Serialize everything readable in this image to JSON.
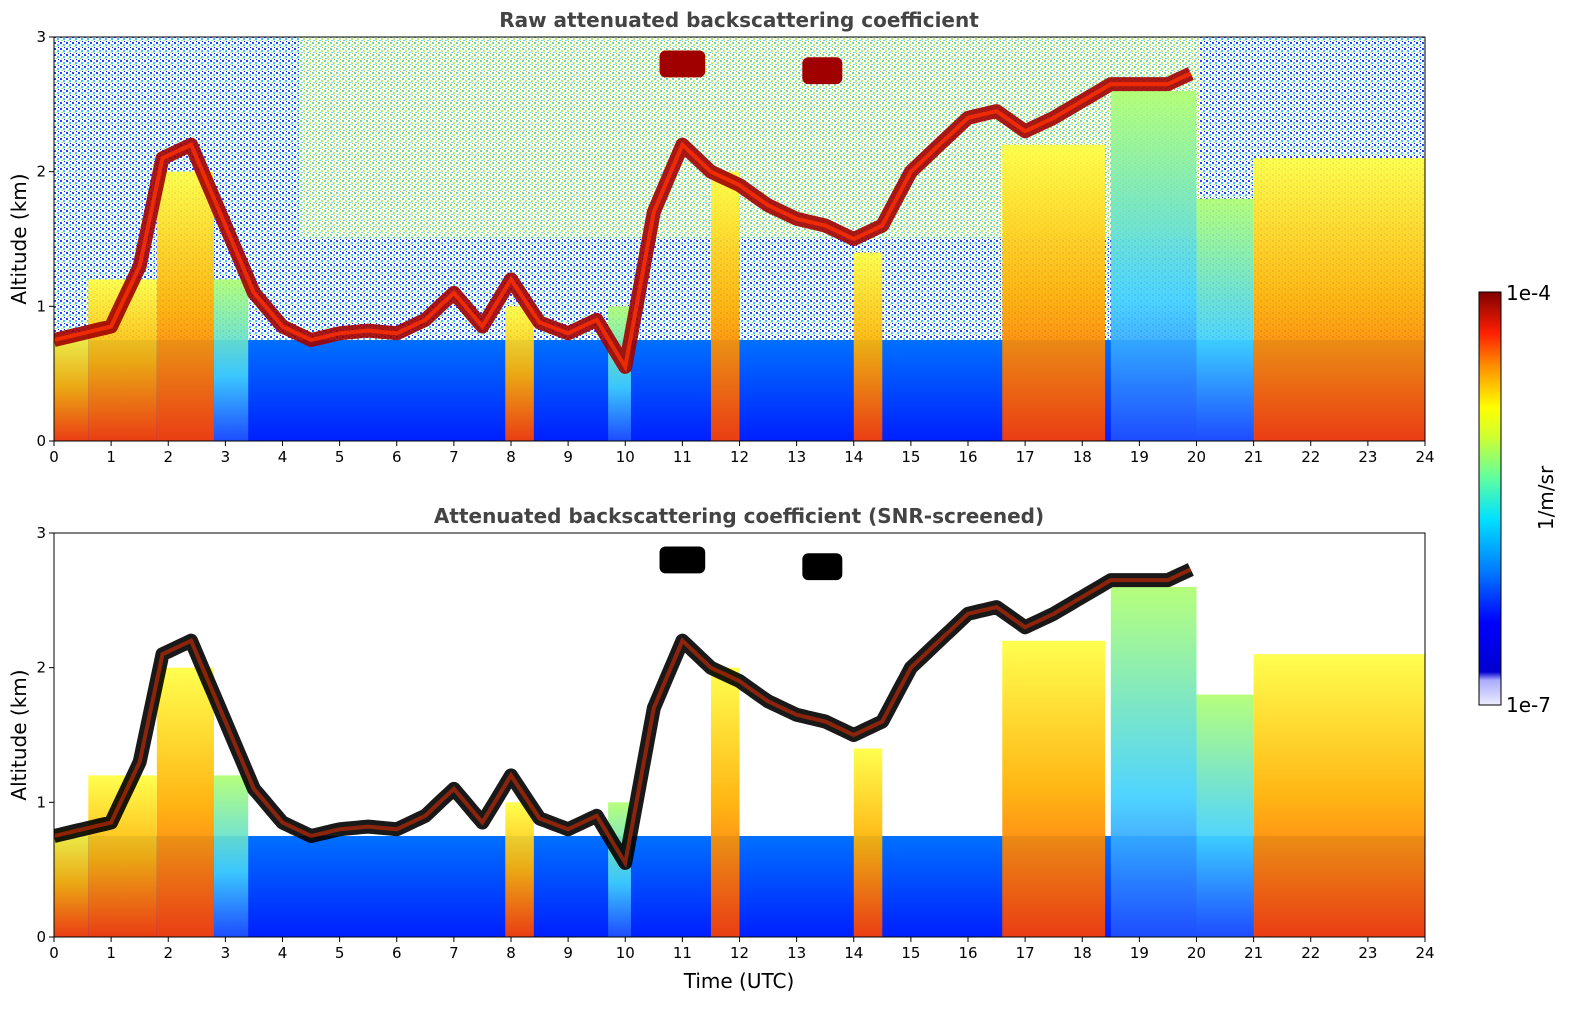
{
  "chart_data": [
    {
      "type": "heatmap",
      "title": "Raw attenuated backscattering coefficient",
      "xlabel": "",
      "ylabel": "Altitude (km)",
      "xlim": [
        0,
        24
      ],
      "ylim": [
        0,
        3
      ],
      "x_ticks": [
        "0",
        "1",
        "2",
        "3",
        "4",
        "5",
        "6",
        "7",
        "8",
        "9",
        "10",
        "11",
        "12",
        "13",
        "14",
        "15",
        "16",
        "17",
        "18",
        "19",
        "20",
        "21",
        "22",
        "23",
        "24"
      ],
      "y_ticks": [
        "0",
        "1",
        "2",
        "3"
      ],
      "colormap": "jet",
      "color_scale": "log",
      "color_range": [
        1e-07,
        0.0001
      ],
      "layer_altitude_km": [
        {
          "t": 0.0,
          "z": 0.75
        },
        {
          "t": 0.5,
          "z": 0.8
        },
        {
          "t": 1.0,
          "z": 0.85
        },
        {
          "t": 1.5,
          "z": 1.3
        },
        {
          "t": 1.9,
          "z": 2.1
        },
        {
          "t": 2.4,
          "z": 2.2
        },
        {
          "t": 3.0,
          "z": 1.6
        },
        {
          "t": 3.5,
          "z": 1.1
        },
        {
          "t": 4.0,
          "z": 0.85
        },
        {
          "t": 4.5,
          "z": 0.75
        },
        {
          "t": 5.0,
          "z": 0.8
        },
        {
          "t": 5.5,
          "z": 0.82
        },
        {
          "t": 6.0,
          "z": 0.8
        },
        {
          "t": 6.5,
          "z": 0.9
        },
        {
          "t": 7.0,
          "z": 1.1
        },
        {
          "t": 7.5,
          "z": 0.85
        },
        {
          "t": 8.0,
          "z": 1.2
        },
        {
          "t": 8.5,
          "z": 0.88
        },
        {
          "t": 9.0,
          "z": 0.8
        },
        {
          "t": 9.5,
          "z": 0.9
        },
        {
          "t": 10.0,
          "z": 0.55
        },
        {
          "t": 10.5,
          "z": 1.7
        },
        {
          "t": 11.0,
          "z": 2.2
        },
        {
          "t": 11.5,
          "z": 2.0
        },
        {
          "t": 12.0,
          "z": 1.9
        },
        {
          "t": 12.5,
          "z": 1.75
        },
        {
          "t": 13.0,
          "z": 1.65
        },
        {
          "t": 13.5,
          "z": 1.6
        },
        {
          "t": 14.0,
          "z": 1.5
        },
        {
          "t": 14.5,
          "z": 1.6
        },
        {
          "t": 15.0,
          "z": 2.0
        },
        {
          "t": 15.5,
          "z": 2.2
        },
        {
          "t": 16.0,
          "z": 2.4
        },
        {
          "t": 16.5,
          "z": 2.45
        },
        {
          "t": 17.0,
          "z": 2.3
        },
        {
          "t": 17.5,
          "z": 2.4
        },
        {
          "t": 18.5,
          "z": 2.65
        },
        {
          "t": 19.0,
          "z": 2.65
        },
        {
          "t": 19.5,
          "z": 2.65
        },
        {
          "t": 20.0,
          "z": 2.75
        }
      ],
      "elevated_layers_km": [
        {
          "t_start": 10.6,
          "t_end": 11.4,
          "z": 2.8
        },
        {
          "t_start": 13.1,
          "t_end": 13.8,
          "z": 2.75
        }
      ]
    },
    {
      "type": "heatmap",
      "title": "Attenuated backscattering coefficient (SNR-screened)",
      "xlabel": "Time (UTC)",
      "ylabel": "Altitude (km)",
      "xlim": [
        0,
        24
      ],
      "ylim": [
        0,
        3
      ],
      "x_ticks": [
        "0",
        "1",
        "2",
        "3",
        "4",
        "5",
        "6",
        "7",
        "8",
        "9",
        "10",
        "11",
        "12",
        "13",
        "14",
        "15",
        "16",
        "17",
        "18",
        "19",
        "20",
        "21",
        "22",
        "23",
        "24"
      ],
      "y_ticks": [
        "0",
        "1",
        "2",
        "3"
      ],
      "colormap": "jet",
      "color_scale": "log",
      "color_range": [
        1e-07,
        0.0001
      ]
    }
  ],
  "colorbar": {
    "max_label": "1e-4",
    "min_label": "1e-7",
    "unit_label": "1/m/sr",
    "colors": [
      "#eeeeff",
      "#ccccff",
      "#aaaaff",
      "#0000cc",
      "#0000ff",
      "#0050ff",
      "#00a0ff",
      "#00e0ff",
      "#40ffc0",
      "#80ff80",
      "#c0ff40",
      "#ffff00",
      "#ffc000",
      "#ff8000",
      "#ff4000",
      "#e00000",
      "#a00000",
      "#800000"
    ]
  }
}
